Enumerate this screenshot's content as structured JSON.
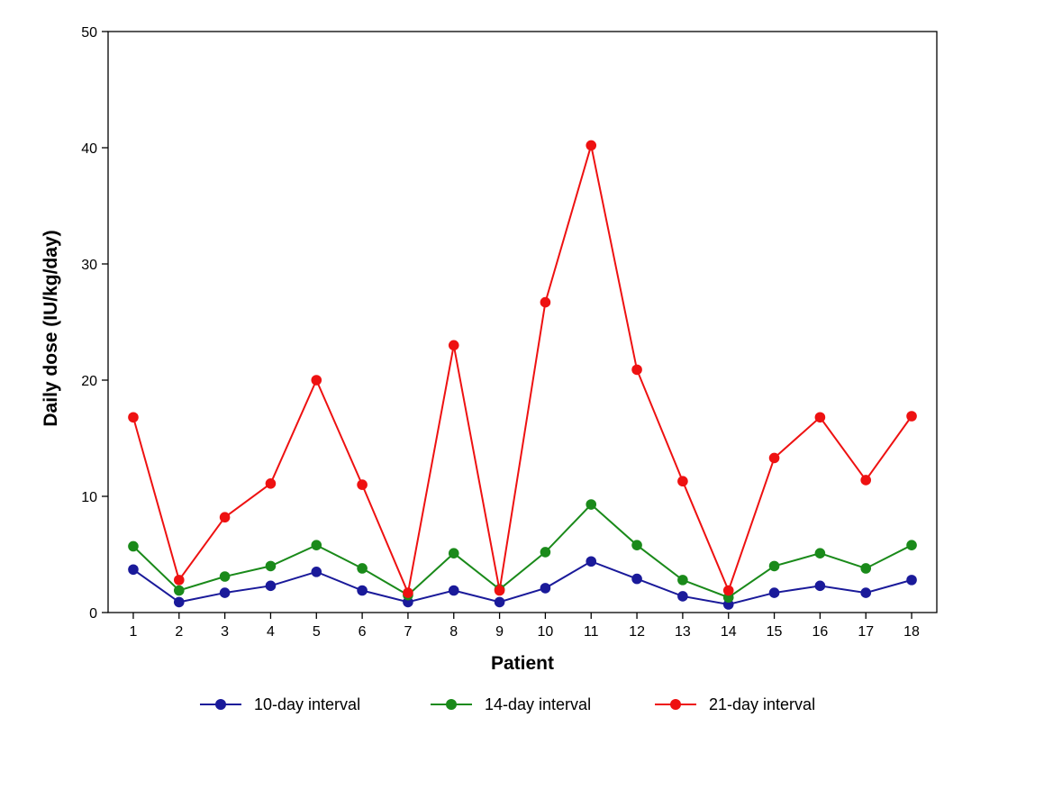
{
  "chart_data": {
    "type": "line",
    "title": "",
    "xlabel": "Patient",
    "ylabel": "Daily dose (IU/kg/day)",
    "x": [
      "1",
      "2",
      "3",
      "4",
      "5",
      "6",
      "7",
      "8",
      "9",
      "10",
      "11",
      "12",
      "13",
      "14",
      "15",
      "16",
      "17",
      "18"
    ],
    "xlim": [
      0.45,
      18.55
    ],
    "ylim": [
      0,
      50
    ],
    "yticks": [
      0,
      10,
      20,
      30,
      40,
      50
    ],
    "grid": false,
    "legend_position": "bottom",
    "series": [
      {
        "name": "10-day interval",
        "color": "#1a1a9a",
        "values": [
          3.7,
          0.9,
          1.7,
          2.3,
          3.5,
          1.9,
          0.9,
          1.9,
          0.9,
          2.1,
          4.4,
          2.9,
          1.4,
          0.7,
          1.7,
          2.3,
          1.7,
          2.8
        ]
      },
      {
        "name": "14-day interval",
        "color": "#1a8a1a",
        "values": [
          5.7,
          1.9,
          3.1,
          4.0,
          5.8,
          3.8,
          1.5,
          5.1,
          2.0,
          5.2,
          9.3,
          5.8,
          2.8,
          1.3,
          4.0,
          5.1,
          3.8,
          5.8
        ]
      },
      {
        "name": "21-day interval",
        "color": "#ee1111",
        "values": [
          16.8,
          2.8,
          8.2,
          11.1,
          20.0,
          11.0,
          1.7,
          23.0,
          1.9,
          26.7,
          40.2,
          20.9,
          11.3,
          1.9,
          13.3,
          16.8,
          11.4,
          16.9
        ]
      }
    ]
  }
}
